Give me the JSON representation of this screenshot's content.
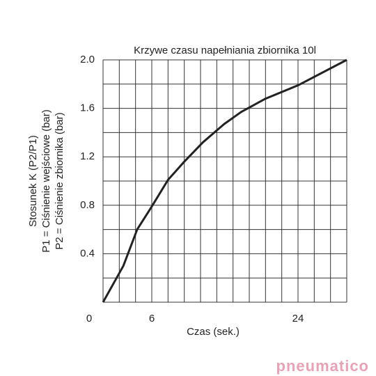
{
  "chart_data": {
    "type": "line",
    "title": "Krzywe czasu napełniania zbiornika 10l",
    "x_label": "Czas (sek.)",
    "y_label": [
      "Stosunek K (P2/P1)",
      "P1 = Ciśnienie wejściowe (bar)",
      "P2 = Ciśnienie zbiornika (bar)"
    ],
    "x": [
      0,
      2.5,
      4.2,
      6,
      8,
      10,
      12.3,
      14.9,
      17,
      20,
      24,
      30
    ],
    "series": [
      {
        "name": "K",
        "color": "#222222",
        "values": [
          0,
          0.3,
          0.6,
          0.79,
          1.01,
          1.16,
          1.32,
          1.47,
          1.57,
          1.68,
          1.79,
          2.0
        ]
      }
    ],
    "xlim": [
      0,
      30
    ],
    "ylim": [
      0,
      2
    ],
    "xticks": [
      0,
      6,
      24
    ],
    "yticks": [
      0.4,
      0.8,
      1.2,
      1.6,
      {
        "value": 2,
        "label": "2.0"
      }
    ],
    "xgrid": [
      0,
      2,
      4,
      6,
      8,
      10,
      12,
      14,
      16,
      18,
      20,
      22,
      24,
      26,
      28,
      30
    ],
    "ygrid": [
      0,
      0.2,
      0.4,
      0.6,
      0.8,
      1,
      1.2,
      1.4,
      1.6,
      1.8,
      2
    ],
    "logo": "pneumatico"
  }
}
